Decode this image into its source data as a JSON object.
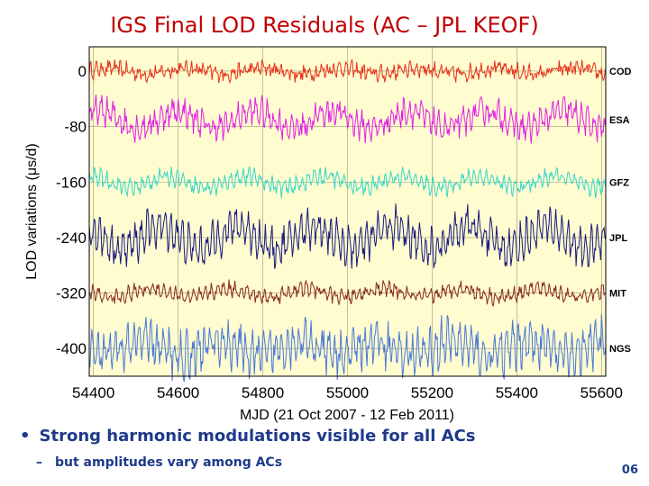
{
  "slide": {
    "title": "IGS Final LOD Residuals (AC – JPL KEOF)",
    "bullet": "Strong harmonic modulations visible for all ACs",
    "sub_bullet": "but amplitudes vary among ACs",
    "page_number": "06"
  },
  "colors": {
    "title": "#c00000",
    "bullets": "#1f3a8a",
    "plot_background": "#fffccf",
    "grid": "#9a9a7a"
  },
  "chart_data": {
    "type": "line",
    "xlabel": "MJD (21 Oct 2007 - 12 Feb 2011)",
    "ylabel": "LOD variations (μs/d)",
    "xlim": [
      54390,
      55610
    ],
    "ylim": [
      -440,
      35
    ],
    "x_ticks": [
      54400,
      54600,
      54800,
      55000,
      55200,
      55400,
      55600
    ],
    "y_ticks": [
      0,
      -80,
      -160,
      -240,
      -320,
      -400
    ],
    "grid": true,
    "series": [
      {
        "name": "COD",
        "color": "#e8301a",
        "offset": 0,
        "amplitude": 12,
        "harmonic": 4,
        "noise": 9
      },
      {
        "name": "ESA",
        "color": "#e020e8",
        "offset": -70,
        "amplitude": 25,
        "harmonic": 12,
        "noise": 14
      },
      {
        "name": "GFZ",
        "color": "#38d6cc",
        "offset": -160,
        "amplitude": 16,
        "harmonic": 8,
        "noise": 8
      },
      {
        "name": "JPL",
        "color": "#1a1a80",
        "offset": -240,
        "amplitude": 40,
        "harmonic": 16,
        "noise": 16
      },
      {
        "name": "MIT",
        "color": "#8a2a1e",
        "offset": -320,
        "amplitude": 14,
        "harmonic": 6,
        "noise": 7
      },
      {
        "name": "NGS",
        "color": "#4a78d8",
        "offset": -400,
        "amplitude": 45,
        "harmonic": 10,
        "noise": 20
      }
    ]
  }
}
